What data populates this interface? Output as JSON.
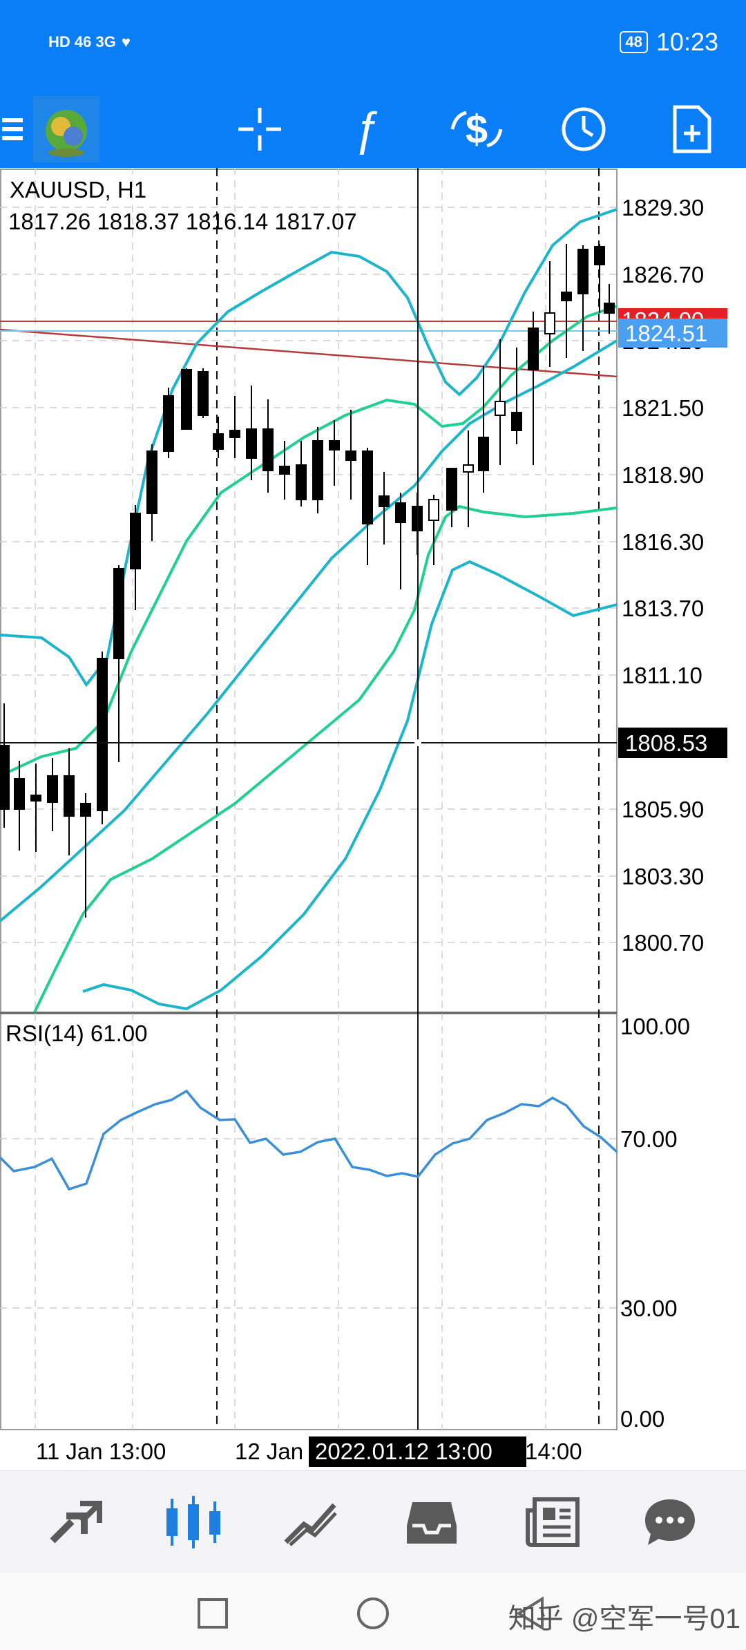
{
  "status_bar": {
    "left_icons": "HD 46 3G",
    "battery": "48",
    "time": "10:23"
  },
  "toolbar": {
    "icons": [
      "menu-icon",
      "app-logo",
      "crosshair-icon",
      "indicators-icon",
      "trade-icon",
      "timeframe-icon",
      "new-order-icon"
    ]
  },
  "chart": {
    "symbol": "XAUUSD, H1",
    "ohlc": "1817.26 1818.37 1816.14 1817.07",
    "price_labels": [
      "1829.30",
      "1826.70",
      "1821.50",
      "1818.90",
      "1816.30",
      "1813.70",
      "1811.10",
      "1805.90",
      "1803.30",
      "1800.70"
    ],
    "partial_labels": [
      "1824.10",
      "1824.00"
    ],
    "bid_label": "1824.51",
    "crosshair_price": "1808.53",
    "time_labels": [
      "11 Jan 13:00",
      "12 Jan",
      "14:00"
    ],
    "crosshair_time": "2022.01.12 13:00",
    "colors": {
      "outer_band": "#1cb5c9",
      "inner_band": "#20d090",
      "rsi": "#3a8fd6",
      "red_line": "#c23434",
      "bid": "#4a9ff0"
    }
  },
  "rsi": {
    "title": "RSI(14) 61.00",
    "levels": [
      "100.00",
      "70.00",
      "30.00",
      "0.00"
    ]
  },
  "bottom_nav": {
    "icons": [
      "quotes-icon",
      "chart-icon",
      "trade-icon",
      "history-icon",
      "news-icon",
      "messages-icon"
    ]
  },
  "system_nav": {
    "icons": [
      "recent-apps-icon",
      "home-icon",
      "back-icon"
    ],
    "watermark": "知乎 @空军一号01"
  }
}
